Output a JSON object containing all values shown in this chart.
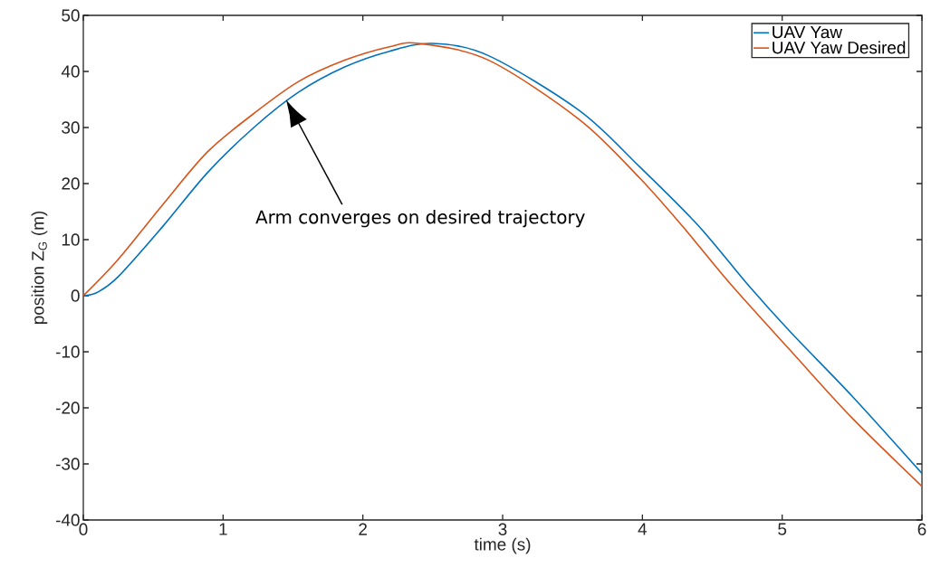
{
  "chart_data": {
    "type": "line",
    "xlabel": "time (s)",
    "ylabel": "position Z$_{G}$ (m)",
    "xlim": [
      0,
      6
    ],
    "ylim": [
      -40,
      50
    ],
    "xticks": [
      0,
      1,
      2,
      3,
      4,
      5,
      6
    ],
    "yticks": [
      -40,
      -30,
      -20,
      -10,
      0,
      10,
      20,
      30,
      40,
      50
    ],
    "grid": false,
    "legend": "top right",
    "marker": "none",
    "line_style": "solid",
    "annotations": [
      "Arm converges on desired trajectory"
    ],
    "series": [
      {
        "name": "UAV Yaw",
        "color": "#0072bd",
        "x": [
          0,
          0.1,
          0.25,
          0.57,
          0.89,
          1.22,
          1.54,
          1.87,
          2.19,
          2.5,
          2.9,
          3.55,
          3.98,
          4.4,
          4.75,
          5.06,
          5.5,
          6
        ],
        "values": [
          0,
          0.6,
          3.4,
          12.4,
          22,
          30,
          36.3,
          40.8,
          43.6,
          45,
          42.8,
          33,
          23,
          12.5,
          2.1,
          -6.5,
          -17.9,
          -31.7
        ]
      },
      {
        "name": "UAV Yaw Desired",
        "color": "#d95319",
        "x": [
          0,
          0.25,
          0.57,
          0.89,
          1.22,
          1.54,
          1.87,
          2.19,
          2.4,
          2.9,
          3.55,
          3.98,
          4.3,
          4.63,
          5.06,
          5.5,
          6
        ],
        "values": [
          0,
          6.5,
          16.3,
          25.7,
          32.5,
          38.2,
          42,
          44.4,
          45,
          42,
          31.4,
          21,
          12,
          2.1,
          -9.8,
          -21.8,
          -34
        ]
      }
    ]
  }
}
